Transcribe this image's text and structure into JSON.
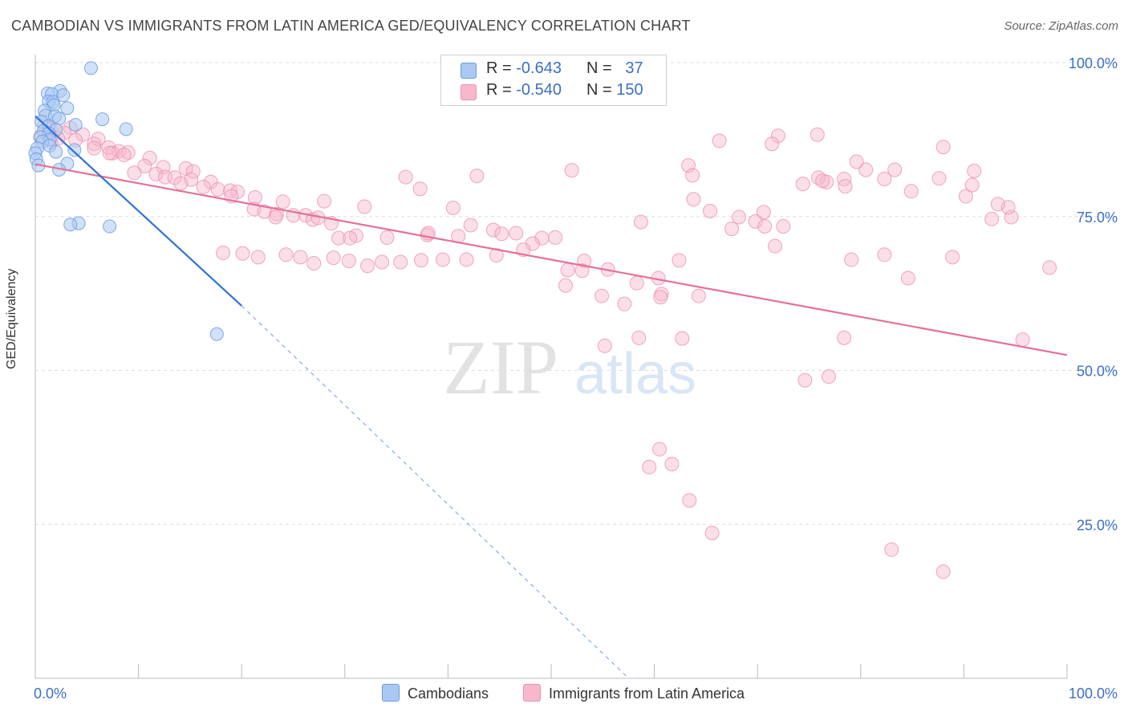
{
  "title": "CAMBODIAN VS IMMIGRANTS FROM LATIN AMERICA GED/EQUIVALENCY CORRELATION CHART",
  "source": "Source: ZipAtlas.com",
  "watermark": {
    "zip": "ZIP",
    "atlas": "atlas"
  },
  "colors": {
    "cambodian_fill": "#a9c8f2",
    "cambodian_stroke": "#6a9be0",
    "cambodian_line": "#2f74d0",
    "latin_fill": "#f7b8cc",
    "latin_stroke": "#ee8fb0",
    "latin_line": "#e4709a",
    "tick_text": "#3b6fc4",
    "grid": "#dddddd"
  },
  "legend_top": {
    "rows": [
      {
        "r_label": "R =",
        "r_value": "-0.643",
        "n_label": "N =",
        "n_value": "37"
      },
      {
        "r_label": "R =",
        "r_value": "-0.540",
        "n_label": "N =",
        "n_value": "150"
      }
    ]
  },
  "legend_bottom": {
    "cambodians": "Cambodians",
    "latin": "Immigrants from Latin America"
  },
  "chart_data": {
    "type": "scatter",
    "title": "CAMBODIAN VS IMMIGRANTS FROM LATIN AMERICA GED/EQUIVALENCY CORRELATION CHART",
    "xlabel": "",
    "ylabel": "GED/Equivalency",
    "xlim": [
      0,
      100
    ],
    "ylim": [
      0,
      100
    ],
    "x_tick_labels": [
      "0.0%",
      "100.0%"
    ],
    "y_ticks": [
      25,
      50,
      75,
      100
    ],
    "y_tick_labels": [
      "25.0%",
      "50.0%",
      "75.0%",
      "100.0%"
    ],
    "grid": "horizontal dashed",
    "legend_position": "top-center and bottom",
    "series": [
      {
        "name": "Cambodians",
        "r": -0.643,
        "n": 37,
        "trend": {
          "x": [
            0,
            20
          ],
          "y": [
            91.3,
            60.5
          ]
        },
        "trend_extension": {
          "x": [
            20,
            57.5
          ],
          "y": [
            60.5,
            0
          ]
        },
        "points": [
          [
            5.4,
            99.1
          ],
          [
            1.2,
            95.0
          ],
          [
            2.4,
            95.4
          ],
          [
            1.6,
            94.9
          ],
          [
            2.7,
            94.7
          ],
          [
            1.3,
            93.7
          ],
          [
            1.7,
            93.6
          ],
          [
            1.8,
            93.1
          ],
          [
            3.1,
            92.6
          ],
          [
            0.9,
            92.2
          ],
          [
            1.0,
            91.4
          ],
          [
            1.9,
            91.3
          ],
          [
            2.3,
            90.9
          ],
          [
            6.5,
            90.8
          ],
          [
            0.6,
            90.4
          ],
          [
            3.9,
            89.9
          ],
          [
            1.3,
            89.7
          ],
          [
            8.8,
            89.2
          ],
          [
            2.0,
            89.1
          ],
          [
            0.8,
            88.9
          ],
          [
            1.3,
            88.5
          ],
          [
            0.5,
            87.9
          ],
          [
            1.4,
            87.5
          ],
          [
            0.7,
            87.2
          ],
          [
            1.4,
            86.5
          ],
          [
            0.2,
            86.1
          ],
          [
            3.8,
            85.8
          ],
          [
            2.0,
            85.5
          ],
          [
            0.0,
            85.3
          ],
          [
            0.1,
            84.3
          ],
          [
            3.1,
            83.6
          ],
          [
            0.3,
            83.3
          ],
          [
            2.3,
            82.6
          ],
          [
            4.2,
            73.9
          ],
          [
            3.4,
            73.7
          ],
          [
            7.2,
            73.4
          ],
          [
            17.6,
            55.9
          ]
        ]
      },
      {
        "name": "Immigrants from Latin America",
        "r": -0.54,
        "n": 150,
        "trend": {
          "x": [
            0,
            100
          ],
          "y": [
            83.5,
            52.5
          ]
        },
        "points": [
          [
            0.9,
            89.8
          ],
          [
            3.4,
            89.4
          ],
          [
            1.5,
            89.2
          ],
          [
            2.8,
            88.6
          ],
          [
            1.4,
            88.4
          ],
          [
            4.6,
            88.3
          ],
          [
            0.5,
            87.9
          ],
          [
            2.2,
            87.7
          ],
          [
            6.1,
            87.6
          ],
          [
            3.9,
            87.4
          ],
          [
            1.5,
            87.1
          ],
          [
            5.7,
            86.8
          ],
          [
            7.1,
            86.2
          ],
          [
            5.7,
            86.1
          ],
          [
            8.1,
            85.6
          ],
          [
            9.0,
            85.4
          ],
          [
            7.5,
            85.3
          ],
          [
            7.2,
            85.3
          ],
          [
            8.6,
            85.0
          ],
          [
            11.1,
            84.5
          ],
          [
            10.6,
            83.2
          ],
          [
            12.4,
            83.0
          ],
          [
            14.6,
            82.8
          ],
          [
            15.3,
            82.3
          ],
          [
            9.6,
            82.1
          ],
          [
            11.7,
            81.9
          ],
          [
            12.6,
            81.4
          ],
          [
            13.5,
            81.3
          ],
          [
            15.1,
            81.0
          ],
          [
            17.0,
            80.6
          ],
          [
            14.1,
            80.4
          ],
          [
            16.3,
            79.8
          ],
          [
            17.7,
            79.4
          ],
          [
            18.9,
            79.2
          ],
          [
            19.6,
            79.0
          ],
          [
            19.0,
            78.3
          ],
          [
            21.3,
            78.1
          ],
          [
            24.0,
            77.4
          ],
          [
            21.2,
            76.2
          ],
          [
            22.2,
            75.8
          ],
          [
            23.4,
            75.4
          ],
          [
            25.0,
            75.2
          ],
          [
            23.3,
            74.9
          ],
          [
            26.2,
            75.2
          ],
          [
            26.9,
            74.5
          ],
          [
            27.4,
            74.8
          ],
          [
            28.7,
            73.9
          ],
          [
            29.4,
            71.5
          ],
          [
            31.1,
            71.9
          ],
          [
            30.5,
            71.5
          ],
          [
            34.1,
            71.6
          ],
          [
            38.0,
            72.0
          ],
          [
            38.1,
            72.3
          ],
          [
            41.0,
            71.8
          ],
          [
            46.6,
            72.3
          ],
          [
            50.4,
            71.6
          ],
          [
            53.2,
            67.8
          ],
          [
            51.6,
            66.3
          ],
          [
            53.0,
            66.2
          ],
          [
            55.5,
            66.4
          ],
          [
            58.3,
            64.2
          ],
          [
            51.4,
            63.8
          ],
          [
            62.4,
            67.9
          ],
          [
            60.4,
            65.0
          ],
          [
            57.1,
            60.8
          ],
          [
            54.9,
            62.1
          ],
          [
            60.7,
            62.4
          ],
          [
            64.3,
            62.1
          ],
          [
            60.6,
            61.9
          ],
          [
            69.8,
            74.2
          ],
          [
            70.7,
            73.4
          ],
          [
            72.5,
            73.4
          ],
          [
            71.7,
            70.2
          ],
          [
            79.1,
            68.0
          ],
          [
            82.3,
            68.8
          ],
          [
            84.6,
            65.0
          ],
          [
            88.9,
            68.4
          ],
          [
            67.5,
            73.0
          ],
          [
            58.5,
            55.3
          ],
          [
            62.7,
            55.2
          ],
          [
            58.7,
            74.1
          ],
          [
            63.8,
            77.8
          ],
          [
            68.2,
            74.9
          ],
          [
            65.4,
            75.9
          ],
          [
            70.6,
            75.7
          ],
          [
            76.7,
            80.6
          ],
          [
            74.4,
            80.3
          ],
          [
            75.9,
            81.3
          ],
          [
            76.3,
            80.8
          ],
          [
            78.4,
            81.1
          ],
          [
            78.5,
            79.9
          ],
          [
            80.5,
            82.6
          ],
          [
            84.9,
            79.1
          ],
          [
            82.3,
            81.1
          ],
          [
            83.3,
            82.6
          ],
          [
            90.2,
            78.3
          ],
          [
            90.8,
            80.1
          ],
          [
            91.0,
            82.4
          ],
          [
            94.6,
            74.9
          ],
          [
            94.3,
            76.5
          ],
          [
            93.3,
            77.0
          ],
          [
            92.7,
            74.6
          ],
          [
            88.0,
            86.3
          ],
          [
            87.6,
            81.2
          ],
          [
            79.6,
            83.9
          ],
          [
            75.8,
            88.3
          ],
          [
            72.0,
            88.1
          ],
          [
            71.4,
            86.8
          ],
          [
            66.3,
            87.3
          ],
          [
            63.3,
            83.3
          ],
          [
            63.7,
            81.7
          ],
          [
            52.0,
            82.5
          ],
          [
            42.8,
            81.6
          ],
          [
            37.3,
            79.5
          ],
          [
            35.9,
            81.4
          ],
          [
            28.0,
            77.5
          ],
          [
            31.9,
            76.6
          ],
          [
            40.5,
            76.4
          ],
          [
            42.2,
            73.6
          ],
          [
            44.4,
            72.8
          ],
          [
            45.2,
            72.2
          ],
          [
            49.1,
            71.5
          ],
          [
            48.2,
            70.6
          ],
          [
            47.3,
            69.6
          ],
          [
            44.7,
            68.7
          ],
          [
            41.8,
            68.0
          ],
          [
            39.5,
            68.0
          ],
          [
            37.4,
            67.9
          ],
          [
            35.4,
            67.6
          ],
          [
            33.6,
            67.6
          ],
          [
            32.2,
            67.0
          ],
          [
            30.4,
            67.8
          ],
          [
            28.9,
            68.3
          ],
          [
            27.0,
            67.4
          ],
          [
            25.7,
            68.4
          ],
          [
            24.3,
            68.8
          ],
          [
            21.6,
            68.4
          ],
          [
            20.1,
            69.0
          ],
          [
            18.2,
            69.1
          ],
          [
            55.2,
            54.0
          ],
          [
            60.5,
            37.2
          ],
          [
            61.7,
            34.8
          ],
          [
            59.5,
            34.3
          ],
          [
            63.4,
            28.9
          ],
          [
            65.6,
            23.6
          ],
          [
            78.4,
            55.3
          ],
          [
            76.9,
            49.0
          ],
          [
            74.6,
            48.4
          ],
          [
            83.0,
            20.9
          ],
          [
            88.0,
            17.3
          ],
          [
            98.3,
            66.7
          ],
          [
            95.7,
            55.0
          ]
        ]
      }
    ]
  }
}
